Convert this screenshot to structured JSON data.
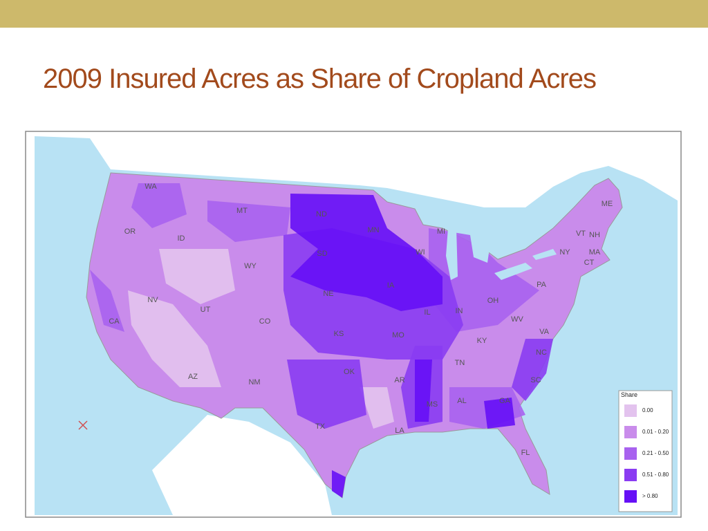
{
  "header": {
    "title": "2009 Insured Acres as Share of Cropland Acres"
  },
  "map": {
    "state_labels": [
      "WA",
      "MT",
      "ND",
      "MN",
      "OR",
      "ID",
      "SD",
      "WI",
      "MI",
      "WY",
      "NY",
      "VT",
      "NH",
      "ME",
      "MA",
      "CT",
      "PA",
      "NE",
      "IA",
      "NV",
      "UT",
      "CO",
      "KS",
      "MO",
      "IL",
      "IN",
      "OH",
      "WV",
      "VA",
      "KY",
      "CA",
      "AZ",
      "NM",
      "OK",
      "AR",
      "TN",
      "NC",
      "SC",
      "MS",
      "AL",
      "GA",
      "TX",
      "LA",
      "FL"
    ],
    "legend": {
      "title": "Share",
      "items": [
        {
          "label": "0.00",
          "color": "#e3c3ee"
        },
        {
          "label": "0.01 - 0.20",
          "color": "#c98ceb"
        },
        {
          "label": "0.21 - 0.50",
          "color": "#a862ef"
        },
        {
          "label": "0.51 - 0.80",
          "color": "#8a3cf2"
        },
        {
          "label": "> 0.80",
          "color": "#6610f6"
        }
      ]
    }
  }
}
